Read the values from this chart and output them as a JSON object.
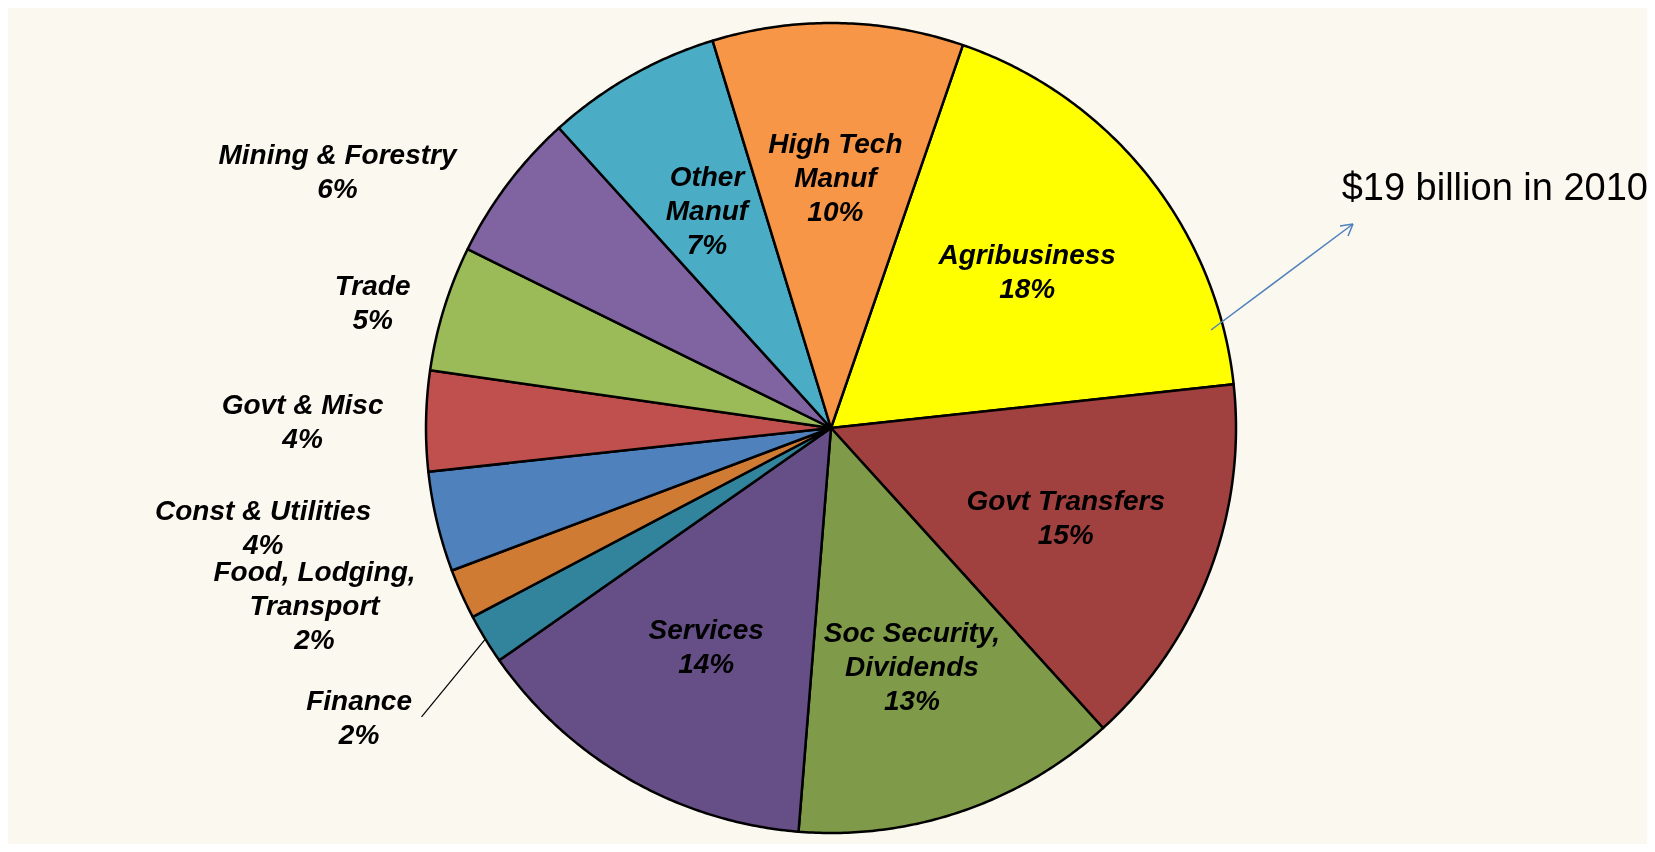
{
  "chart_data": {
    "type": "pie",
    "categories": [
      "Agribusiness",
      "Govt Transfers",
      "Soc Security, Dividends",
      "Services",
      "Finance",
      "Food, Lodging, Transport",
      "Const & Utilities",
      "Govt & Misc",
      "Trade",
      "Mining & Forestry",
      "Other Manuf",
      "High Tech Manuf"
    ],
    "values": [
      18,
      15,
      13,
      14,
      2,
      2,
      4,
      4,
      5,
      6,
      7,
      10
    ],
    "value_labels": [
      "18%",
      "15%",
      "13%",
      "14%",
      "2%",
      "2%",
      "4%",
      "4%",
      "5%",
      "6%",
      "7%",
      "10%"
    ],
    "colors": [
      "#ffff00",
      "#a0403f",
      "#7f9a48",
      "#664f87",
      "#31849b",
      "#d07b33",
      "#4f81bd",
      "#c0504d",
      "#9bbb59",
      "#8064a2",
      "#4bacc6",
      "#f79646"
    ],
    "annotations": [
      "$19 billion in 2010"
    ],
    "legend": false
  }
}
